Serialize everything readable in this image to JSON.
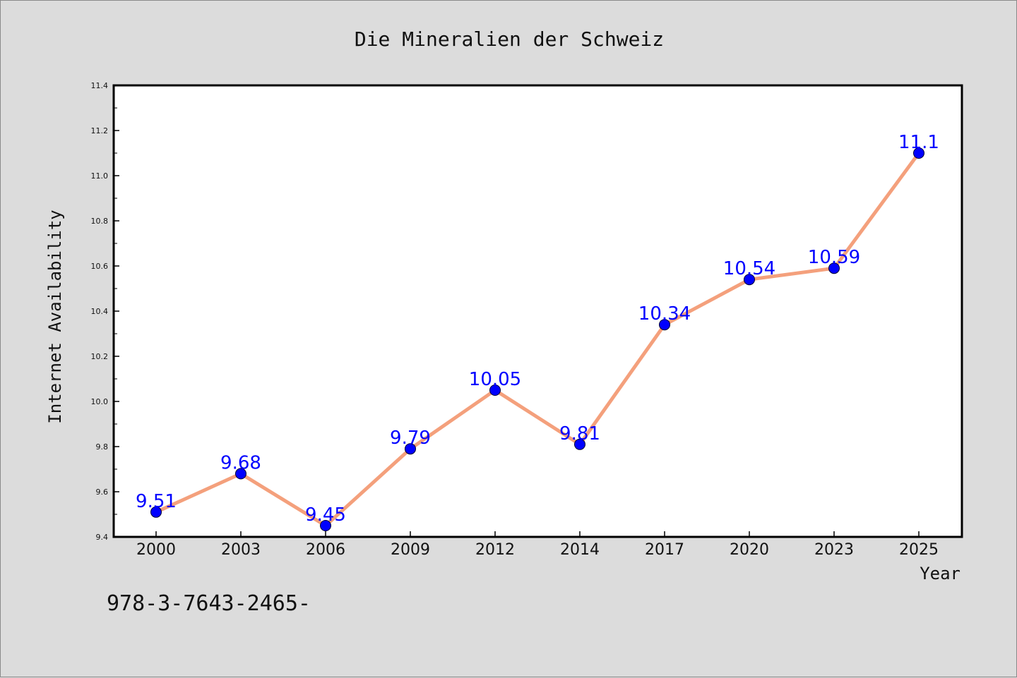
{
  "chart_data": {
    "type": "line",
    "title": "Die Mineralien der Schweiz",
    "xlabel": "Year",
    "ylabel": "Internet Availability",
    "categories": [
      "2000",
      "2003",
      "2006",
      "2009",
      "2012",
      "2014",
      "2017",
      "2020",
      "2023",
      "2025"
    ],
    "series": [
      {
        "values": [
          9.51,
          9.68,
          9.45,
          9.79,
          10.05,
          9.81,
          10.34,
          10.54,
          10.59,
          11.1
        ],
        "data_labels": [
          "9.51",
          "9.68",
          "9.45",
          "9.79",
          "10.05",
          "9.81",
          "10.34",
          "10.54",
          "10.59",
          "11.1"
        ],
        "line_color": "#f4a07c",
        "marker_color": "#0000ff"
      }
    ],
    "ylim": [
      9.4,
      11.4
    ],
    "yticks": [
      "9.4",
      "9.6",
      "9.8",
      "10.0",
      "10.2",
      "10.4",
      "10.6",
      "10.8",
      "11.0",
      "11.2",
      "11.4"
    ],
    "grid": false,
    "legend": "none"
  },
  "footer_text": "978-3-7643-2465-",
  "colors": {
    "background": "#dcdcdc",
    "plot_background": "#ffffff",
    "axis": "#000000"
  }
}
